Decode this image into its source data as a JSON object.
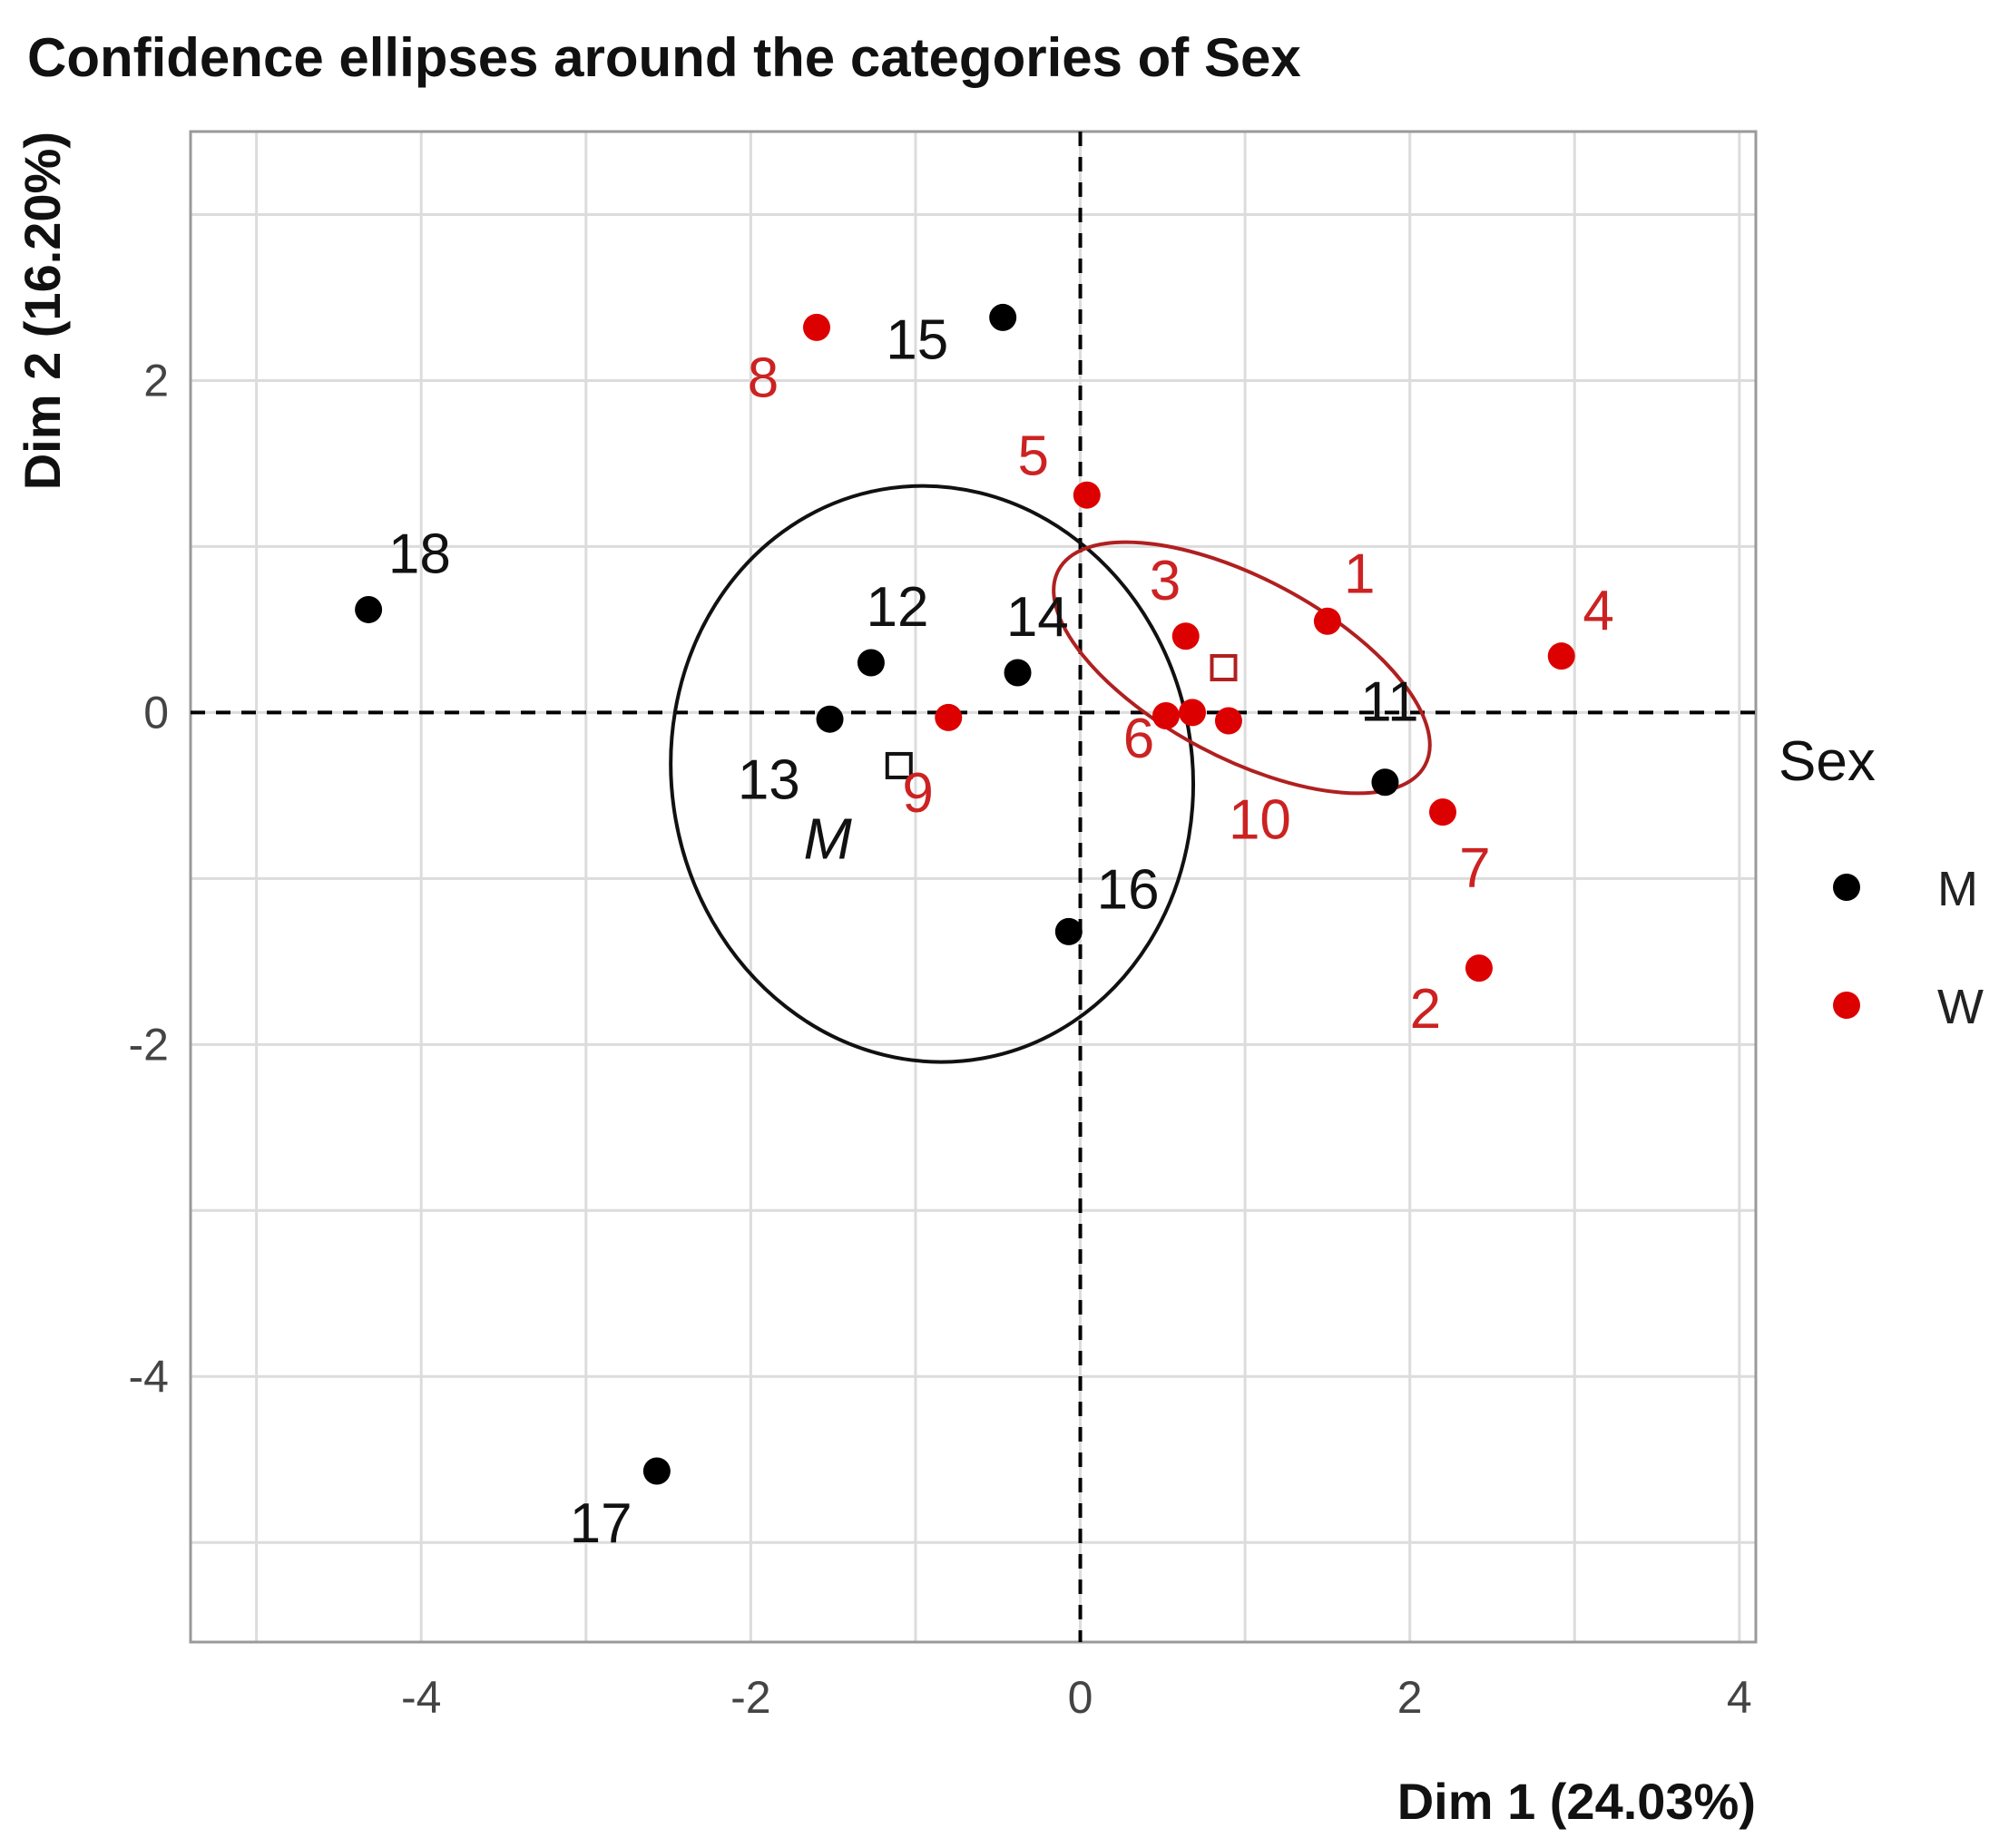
{
  "chart_data": {
    "type": "scatter",
    "title": "Confidence ellipses around the categories of Sex",
    "xlabel": "Dim 1 (24.03%)",
    "ylabel": "Dim 2 (16.20%)",
    "xlim": [
      -5.4,
      4.1
    ],
    "ylim": [
      -5.6,
      3.5
    ],
    "xticks": [
      -4,
      -2,
      0,
      2,
      4
    ],
    "yticks": [
      2,
      0,
      -2,
      -4
    ],
    "xtick_labels": [
      "-4",
      "-2",
      "0",
      "2",
      "4"
    ],
    "ytick_labels": [
      "2",
      "0",
      "-2",
      "-4"
    ],
    "grid": true,
    "reference_lines": {
      "x": 0,
      "y": 0,
      "style": "dashed"
    },
    "legend": {
      "title": "Sex",
      "position": "right",
      "entries": [
        {
          "label": "M",
          "color": "#000000"
        },
        {
          "label": "W",
          "color": "#dd0000"
        }
      ]
    },
    "series": [
      {
        "name": "M",
        "color": "#000000",
        "label_color": "#111111",
        "points": [
          {
            "label": "11",
            "x": 1.85,
            "y": -0.42,
            "lx": 1.7,
            "ly": -0.05
          },
          {
            "label": "12",
            "x": -1.27,
            "y": 0.3,
            "lx": -1.3,
            "ly": 0.52
          },
          {
            "label": "13",
            "x": -1.52,
            "y": -0.04,
            "lx": -2.08,
            "ly": -0.52
          },
          {
            "label": "14",
            "x": -0.38,
            "y": 0.24,
            "lx": -0.45,
            "ly": 0.46
          },
          {
            "label": "15",
            "x": -0.47,
            "y": 2.38,
            "lx": -1.18,
            "ly": 2.13
          },
          {
            "label": "16",
            "x": -0.07,
            "y": -1.32,
            "lx": 0.1,
            "ly": -1.18
          },
          {
            "label": "17",
            "x": -2.57,
            "y": -4.57,
            "lx": -3.1,
            "ly": -5.0
          },
          {
            "label": "18",
            "x": -4.32,
            "y": 0.62,
            "lx": -4.2,
            "ly": 0.84
          }
        ],
        "centroid": {
          "x": -1.1,
          "y": -0.32,
          "label": "M",
          "lx": -1.68,
          "ly": -0.88
        },
        "ellipse": {
          "cx": -0.9,
          "cy": -0.37,
          "rx": 1.58,
          "ry": 1.74,
          "rotation_deg": -10
        }
      },
      {
        "name": "W",
        "color": "#dd0000",
        "label_color": "#cc2222",
        "points": [
          {
            "label": "1",
            "x": 1.5,
            "y": 0.55,
            "lx": 1.6,
            "ly": 0.72
          },
          {
            "label": "2",
            "x": 2.42,
            "y": -1.54,
            "lx": 2.0,
            "ly": -1.9
          },
          {
            "label": "3",
            "x": 0.64,
            "y": 0.46,
            "lx": 0.42,
            "ly": 0.68
          },
          {
            "label": "4",
            "x": 2.92,
            "y": 0.34,
            "lx": 3.05,
            "ly": 0.5
          },
          {
            "label": "5",
            "x": 0.04,
            "y": 1.31,
            "lx": -0.38,
            "ly": 1.43
          },
          {
            "label": "6",
            "x": 0.52,
            "y": -0.02,
            "lx": 0.26,
            "ly": -0.27
          },
          {
            "label": "7",
            "x": 2.2,
            "y": -0.6,
            "lx": 2.3,
            "ly": -1.05
          },
          {
            "label": "8",
            "x": -1.6,
            "y": 2.32,
            "lx": -2.02,
            "ly": 1.9
          },
          {
            "label": "9",
            "x": -0.8,
            "y": -0.03,
            "lx": -1.08,
            "ly": -0.6
          },
          {
            "label": "10",
            "x": 0.9,
            "y": -0.05,
            "lx": 0.9,
            "ly": -0.76
          },
          {
            "label": "",
            "x": 0.68,
            "y": 0.0,
            "lx": 0.6,
            "ly": -0.27
          }
        ],
        "centroid": {
          "x": 0.87,
          "y": 0.27,
          "label": "",
          "lx": 0,
          "ly": 0
        },
        "ellipse": {
          "cx": 0.98,
          "cy": 0.27,
          "rx": 1.26,
          "ry": 0.54,
          "rotation_deg": 28
        }
      }
    ]
  }
}
